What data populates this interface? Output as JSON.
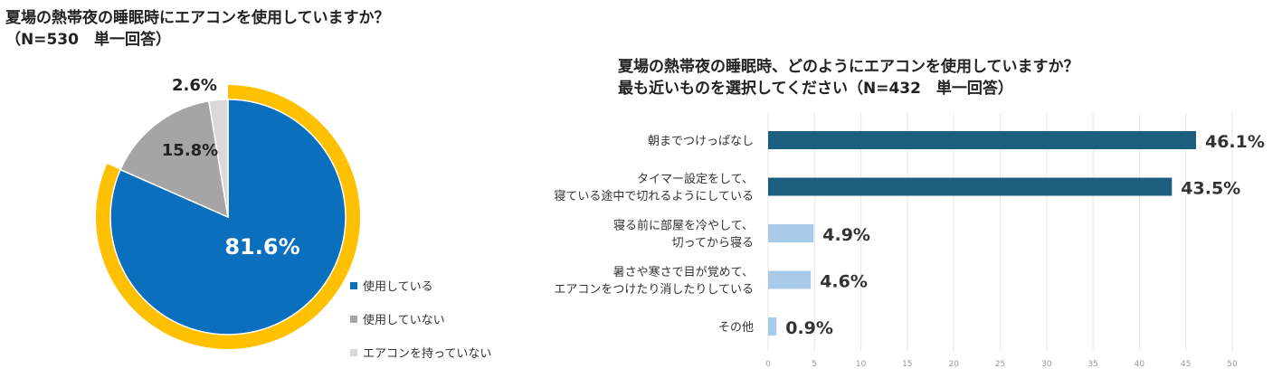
{
  "chart_data": [
    {
      "type": "pie",
      "title": [
        "夏場の熱帯夜の睡眠時にエアコンを使用していますか？",
        "（N=530　単一回答）"
      ],
      "categories": [
        "使用している",
        "使用していない",
        "エアコンを持っていない"
      ],
      "values": [
        81.6,
        15.8,
        2.6
      ],
      "labels": [
        "81.6%",
        "15.8%",
        "2.6%"
      ],
      "colors": [
        "#0a6fbd",
        "#a5a5a5",
        "#d9d9d9"
      ],
      "highlight_color": "#ffc000",
      "legend": "bottom-right"
    },
    {
      "type": "bar",
      "orientation": "horizontal",
      "title": [
        "夏場の熱帯夜の睡眠時、どのようにエアコンを使用していますか？",
        "最も近いものを選択してください（N=432　単一回答）"
      ],
      "categories": [
        [
          "朝までつけっぱなし"
        ],
        [
          "タイマー設定をして、",
          "寝ている途中で切れるようにしている"
        ],
        [
          "寝る前に部屋を冷やして、",
          "切ってから寝る"
        ],
        [
          "暑さや寒さで目が覚めて、",
          "エアコンをつけたり消したりしている"
        ],
        [
          "その他"
        ]
      ],
      "values": [
        46.1,
        43.5,
        4.9,
        4.6,
        0.9
      ],
      "labels": [
        "46.1%",
        "43.5%",
        "4.9%",
        "4.6%",
        "0.9%"
      ],
      "colors": [
        "#1b5e7e",
        "#1b5e7e",
        "#a9cbea",
        "#a9cbea",
        "#a9cbea"
      ],
      "xlim": [
        0,
        50
      ],
      "xticks": [
        "0",
        "5",
        "10",
        "15",
        "20",
        "25",
        "30",
        "35",
        "40",
        "45",
        "50"
      ],
      "grid": true
    }
  ]
}
